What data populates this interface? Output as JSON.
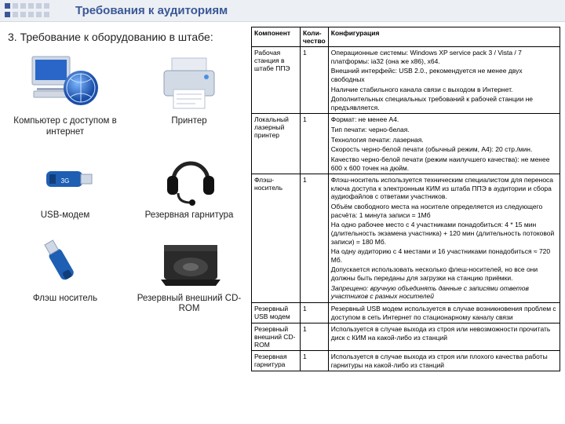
{
  "header": {
    "title": "Требования к аудиториям",
    "dot_colors": [
      "#3a5896",
      "#c7cfde",
      "#c7cfde",
      "#c7cfde",
      "#c7cfde",
      "#c7cfde",
      "#3a5896",
      "#c7cfde",
      "#c7cfde",
      "#c7cfde",
      "#c7cfde",
      "#c7cfde"
    ]
  },
  "section": {
    "heading": "3. Требование к оборудованию в штабе:"
  },
  "devices": [
    {
      "label": "Компьютер с доступом в интернет",
      "name": "computer-internet-icon"
    },
    {
      "label": "Принтер",
      "name": "printer-icon"
    },
    {
      "label": "USB-модем",
      "name": "usb-modem-icon"
    },
    {
      "label": "Резервная гарнитура",
      "name": "headset-icon"
    },
    {
      "label": "Флэш носитель",
      "name": "flash-drive-icon"
    },
    {
      "label": "Резервный внешний CD-ROM",
      "name": "cdrom-icon"
    }
  ],
  "table": {
    "headers": [
      "Компонент",
      "Коли-чество",
      "Конфигурация"
    ],
    "rows": [
      {
        "component": "Рабочая станция в штабе ППЭ",
        "qty": "1",
        "paras": [
          "Операционные системы: Windows XP service pack 3 / Vista / 7 платформы: ia32 (она же x86), x64.",
          "Внешний интерфейс: USB 2.0., рекомендуется не менее двух свободных",
          "Наличие стабильного канала связи с выходом в Интернет.",
          "Дополнительных специальных требований к рабочей станции не предъявляется."
        ]
      },
      {
        "component": "Локальный лазерный принтер",
        "qty": "1",
        "paras": [
          "Формат: не менее А4.",
          "Тип печати: черно-белая.",
          "Технология печати: лазерная.",
          "Скорость черно-белой печати (обычный режим, А4): 20 стр./мин.",
          "Качество черно-белой печати (режим наилучшего качества): не менее 600 x 600 точек на дюйм."
        ]
      },
      {
        "component": "Флэш-носитель",
        "qty": "1",
        "paras": [
          "Флэш-носитель используется техническим специалистом для переноса ключа доступа к электронным КИМ из штаба ППЭ в аудитории и сбора аудиофайлов с ответами участников.",
          "Объём свободного места на носителе определяется из следующего расчёта: 1 минута записи = 1Мб",
          "На одно рабочее место с 4 участниками понадобиться: 4 * 15 мин (длительность экзамена участника) + 120 мин (длительность потоковой записи) = 180 Мб.",
          "На одну аудиторию с 4 местами и 16 участниками понадобиться ≈ 720 Мб.",
          "Допускается использовать несколько флеш-носителей, но все они должны быть переданы для загрузки на станцию приёмки.",
          "_italic_Запрещено: вручную объединять данные с записями ответов участников с разных носителей"
        ]
      },
      {
        "component": "Резервный USB модем",
        "qty": "1",
        "paras": [
          "Резервный USB модем используется в случае возникновения проблем с доступом в сеть Интернет по стационарному каналу связи"
        ]
      },
      {
        "component": "Резервный внешний CD-ROM",
        "qty": "1",
        "paras": [
          "Используется в случае выхода из строя или невозможности прочитать диск с КИМ на какой-либо из станций"
        ]
      },
      {
        "component": "Резервная гарнитура",
        "qty": "1",
        "paras": [
          "Используется в случае выхода из строя или плохого качества работы гарнитуры на какой-либо из станций"
        ]
      }
    ]
  }
}
